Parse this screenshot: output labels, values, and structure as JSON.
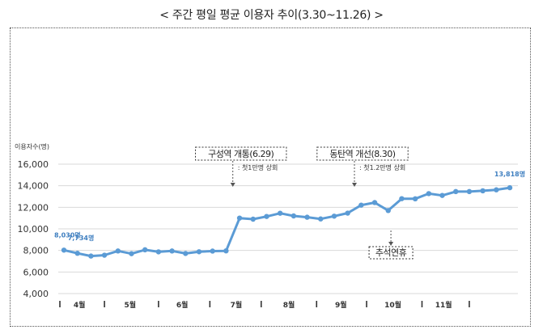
{
  "chart_data": {
    "type": "line",
    "title": "< 주간 평일 평균 이용자 추이(3.30~11.26) >",
    "ylabel": "이용자수(명)",
    "ylim": [
      4000,
      16000
    ],
    "yticks": [
      "4,000",
      "6,000",
      "8,000",
      "10,000",
      "12,000",
      "14,000",
      "16,000"
    ],
    "ytick_values": [
      4000,
      6000,
      8000,
      10000,
      12000,
      14000,
      16000
    ],
    "month_labels": [
      "4월",
      "5월",
      "6월",
      "7월",
      "8월",
      "9월",
      "10월",
      "11월"
    ],
    "month_week_index": [
      1.15,
      4.9,
      8.75,
      12.75,
      16.65,
      20.5,
      24.35,
      28.1
    ],
    "month_boundaries": [
      -0.3,
      3.0,
      7.0,
      10.8,
      14.6,
      18.7,
      22.4,
      26.5,
      30.0
    ],
    "series": [
      {
        "color": "#5b9bd5",
        "values": [
          8030,
          7734,
          7480,
          7560,
          7950,
          7700,
          8060,
          7870,
          7950,
          7720,
          7880,
          7940,
          7960,
          11000,
          10900,
          11150,
          11450,
          11200,
          11080,
          10920,
          11180,
          11460,
          12200,
          12440,
          11700,
          12800,
          12790,
          13270,
          13100,
          13460,
          13460,
          13530,
          13620,
          13818
        ]
      }
    ],
    "data_labels": [
      {
        "index": 0,
        "text": "8,030명"
      },
      {
        "index": 1,
        "text": "7,734명"
      },
      {
        "index": 33,
        "text": "13,818명"
      }
    ],
    "annotations": [
      {
        "index": 12.5,
        "title": "구성역 개통(6.29)",
        "note": ": 첫1만명 상회"
      },
      {
        "index": 21.5,
        "title": "동탄역 개선(8.30)",
        "note": ": 첫1.2만명 상회"
      },
      {
        "index": 24.2,
        "title": "추석연휴"
      }
    ],
    "grid": true
  }
}
